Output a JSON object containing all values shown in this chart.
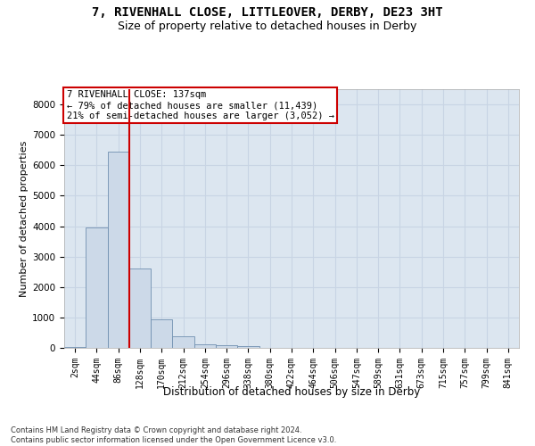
{
  "title_line1": "7, RIVENHALL CLOSE, LITTLEOVER, DERBY, DE23 3HT",
  "title_line2": "Size of property relative to detached houses in Derby",
  "xlabel": "Distribution of detached houses by size in Derby",
  "ylabel": "Number of detached properties",
  "categories": [
    "2sqm",
    "44sqm",
    "86sqm",
    "128sqm",
    "170sqm",
    "212sqm",
    "254sqm",
    "296sqm",
    "338sqm",
    "380sqm",
    "422sqm",
    "464sqm",
    "506sqm",
    "547sqm",
    "589sqm",
    "631sqm",
    "673sqm",
    "715sqm",
    "757sqm",
    "799sqm",
    "841sqm"
  ],
  "values": [
    30,
    3950,
    6450,
    2600,
    950,
    380,
    130,
    100,
    50,
    0,
    0,
    0,
    0,
    0,
    0,
    0,
    0,
    0,
    0,
    0,
    0
  ],
  "bar_color": "#ccd9e8",
  "bar_edge_color": "#7090b0",
  "vline_color": "#cc0000",
  "annotation_text": "7 RIVENHALL CLOSE: 137sqm\n← 79% of detached houses are smaller (11,439)\n21% of semi-detached houses are larger (3,052) →",
  "annotation_box_color": "#ffffff",
  "annotation_box_edge_color": "#cc0000",
  "ylim": [
    0,
    8500
  ],
  "yticks": [
    0,
    1000,
    2000,
    3000,
    4000,
    5000,
    6000,
    7000,
    8000
  ],
  "grid_color": "#c8d4e4",
  "background_color": "#dce6f0",
  "footnote": "Contains HM Land Registry data © Crown copyright and database right 2024.\nContains public sector information licensed under the Open Government Licence v3.0.",
  "title_fontsize": 10,
  "subtitle_fontsize": 9,
  "tick_fontsize": 7,
  "ylabel_fontsize": 8,
  "xlabel_fontsize": 8.5,
  "annot_fontsize": 7.5,
  "footnote_fontsize": 6
}
